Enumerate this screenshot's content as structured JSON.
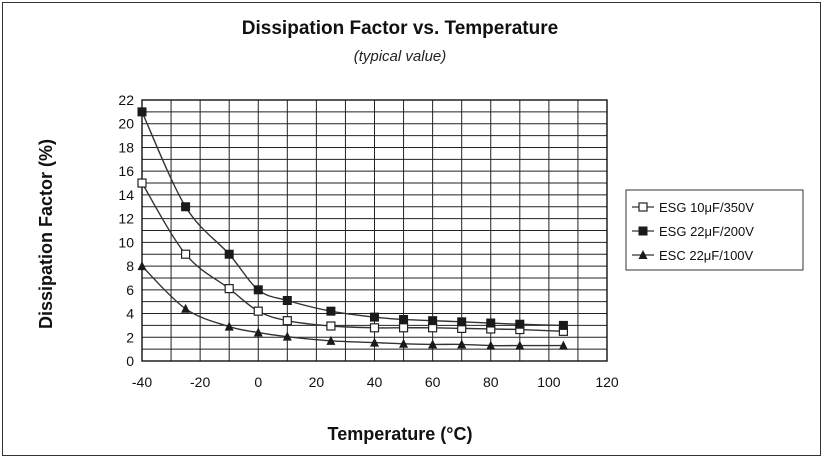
{
  "chart_data": {
    "type": "line",
    "title": "Dissipation Factor vs. Temperature",
    "subtitle": "(typical value)",
    "xlabel": "Temperature (°C)",
    "ylabel": "Dissipation Factor (%)",
    "xlim": [
      -40,
      120
    ],
    "ylim": [
      0,
      22
    ],
    "xticks": [
      -40,
      -20,
      0,
      20,
      40,
      60,
      80,
      100,
      120
    ],
    "yticks": [
      0,
      2,
      4,
      6,
      8,
      10,
      12,
      14,
      16,
      18,
      20,
      22
    ],
    "x_minor_step": 10,
    "y_minor_step": 1,
    "grid": true,
    "legend_position": "right",
    "series": [
      {
        "name": "ESG 10μF/350V",
        "marker": "open-square",
        "x": [
          -40,
          -25,
          -10,
          0,
          10,
          25,
          40,
          50,
          60,
          70,
          80,
          90,
          105
        ],
        "values": [
          15,
          9,
          6.1,
          4.2,
          3.4,
          2.95,
          2.8,
          2.8,
          2.8,
          2.75,
          2.7,
          2.65,
          2.5
        ]
      },
      {
        "name": "ESG 22μF/200V",
        "marker": "filled-square",
        "x": [
          -40,
          -25,
          -10,
          0,
          10,
          25,
          40,
          50,
          60,
          70,
          80,
          90,
          105
        ],
        "values": [
          21,
          13,
          9,
          6,
          5.1,
          4.2,
          3.7,
          3.5,
          3.4,
          3.3,
          3.2,
          3.1,
          3
        ]
      },
      {
        "name": "ESC 22μF/100V",
        "marker": "filled-triangle",
        "x": [
          -40,
          -25,
          -10,
          0,
          10,
          25,
          40,
          50,
          60,
          70,
          80,
          90,
          105
        ],
        "values": [
          8,
          4.4,
          2.9,
          2.4,
          2.05,
          1.7,
          1.55,
          1.45,
          1.4,
          1.4,
          1.3,
          1.3,
          1.3
        ]
      }
    ]
  }
}
